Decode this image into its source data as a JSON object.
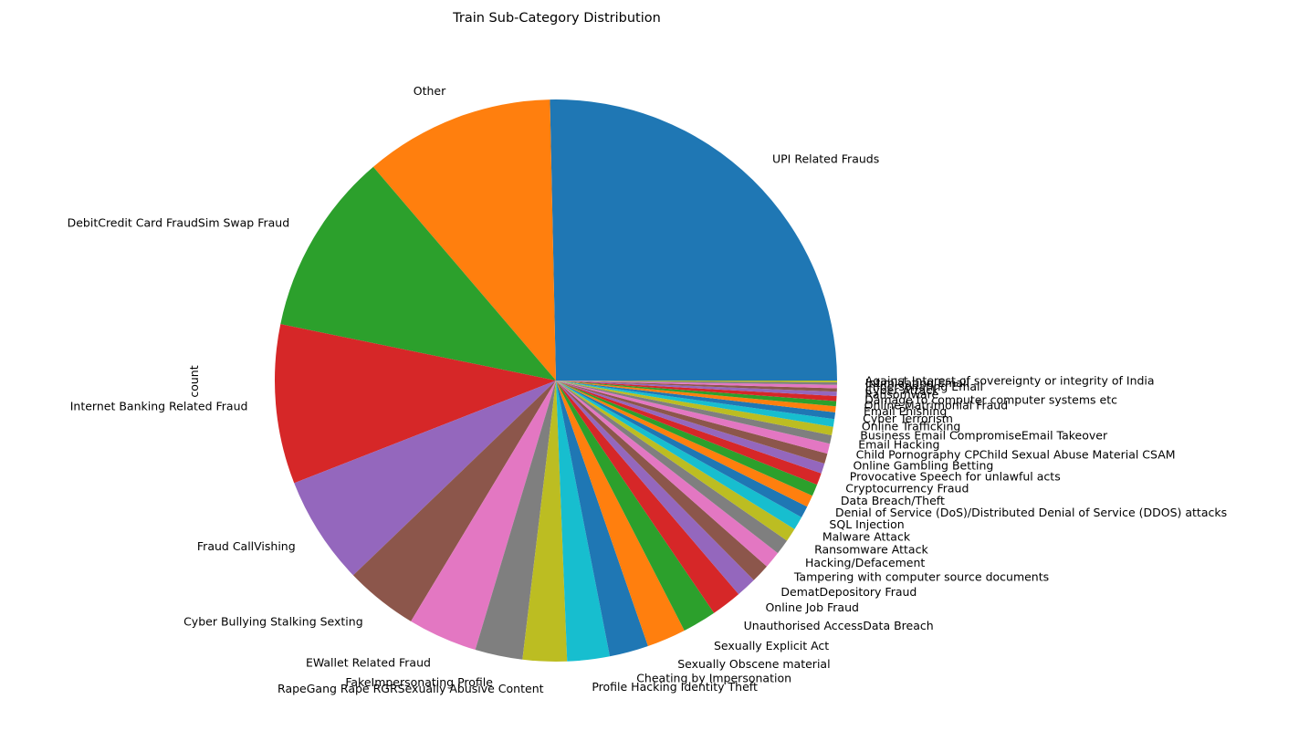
{
  "chart_data": {
    "type": "pie",
    "title": "Train Sub-Category Distribution",
    "ylabel": "count",
    "start_angle_deg": 0,
    "direction": "counterclockwise",
    "legend": "none",
    "categories": [
      "UPI Related Frauds",
      "Other",
      "DebitCredit Card FraudSim Swap Fraud",
      "Internet Banking Related Fraud",
      "Fraud CallVishing",
      "Cyber Bullying  Stalking  Sexting",
      "EWallet Related Fraud",
      "FakeImpersonating Profile",
      "RapeGang Rape RGRSexually Abusive Content",
      "Profile Hacking Identity Theft",
      "Cheating by Impersonation",
      "Sexually Obscene material",
      "Sexually Explicit Act",
      "Unauthorised AccessData Breach",
      "Online Job Fraud",
      "DematDepository Fraud",
      "Tampering with computer source documents",
      "Hacking/Defacement",
      "Ransomware Attack",
      "Malware Attack",
      "SQL Injection",
      "Denial of Service (DoS)/Distributed Denial of Service (DDOS) attacks",
      "Data Breach/Theft",
      "Cryptocurrency Fraud",
      "Provocative Speech for unlawful acts",
      "Online Gambling  Betting",
      "Child Pornography CPChild Sexual Abuse Material CSAM",
      "Email Hacking",
      "Business Email CompromiseEmail Takeover",
      "Online Trafficking",
      "Cyber Terrorism",
      "Email Phishing",
      "Online Matrimonial Fraud",
      "Damage to computer computer systems etc",
      "Ransomware",
      "Cyber Attack",
      "Impersonating Email",
      "Intimidating Email",
      "Against Interest of sovereignty or integrity of India"
    ],
    "values": [
      26.0,
      11.2,
      10.8,
      9.4,
      6.4,
      4.3,
      4.1,
      2.8,
      2.6,
      2.5,
      2.3,
      2.3,
      2.0,
      1.8,
      1.2,
      1.1,
      1.0,
      0.9,
      0.8,
      0.8,
      0.7,
      0.7,
      0.7,
      0.7,
      0.6,
      0.6,
      0.6,
      0.5,
      0.5,
      0.45,
      0.4,
      0.35,
      0.3,
      0.3,
      0.25,
      0.2,
      0.2,
      0.15,
      0.1
    ],
    "colors": [
      "#1f77b4",
      "#ff7f0e",
      "#2ca02c",
      "#d62728",
      "#9467bd",
      "#8c564b",
      "#e377c2",
      "#7f7f7f",
      "#bcbd22",
      "#17becf"
    ]
  }
}
